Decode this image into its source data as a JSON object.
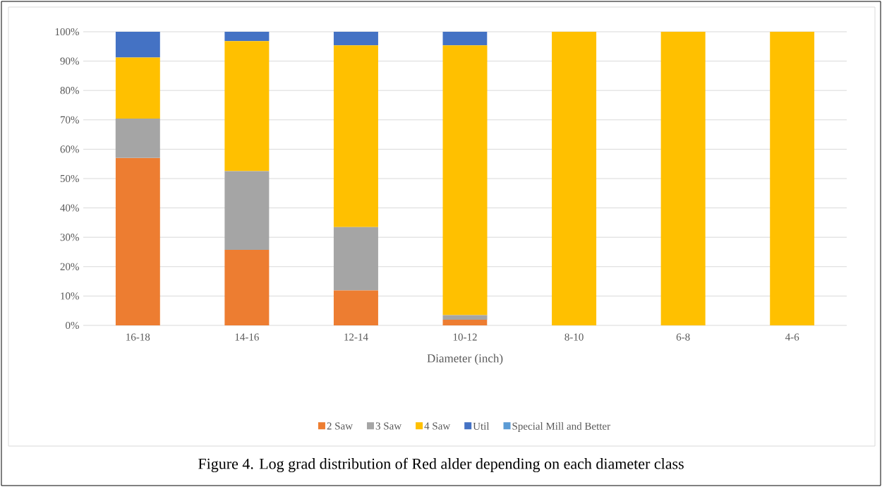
{
  "chart_data": {
    "type": "bar",
    "stacked": true,
    "xlabel": "Diameter (inch)",
    "categories": [
      "16-18",
      "14-16",
      "12-14",
      "10-12",
      "8-10",
      "6-8",
      "4-6"
    ],
    "series": [
      {
        "name": "2 Saw",
        "color": "#ed7d31",
        "values": [
          57.0,
          25.7,
          11.9,
          1.9,
          0,
          0,
          0
        ]
      },
      {
        "name": "3 Saw",
        "color": "#a5a5a5",
        "values": [
          13.4,
          26.8,
          21.6,
          1.6,
          0,
          0,
          0
        ]
      },
      {
        "name": "4 Saw",
        "color": "#ffc000",
        "values": [
          20.8,
          44.3,
          61.9,
          91.9,
          100,
          100,
          100
        ]
      },
      {
        "name": "Util",
        "color": "#4472c4",
        "values": [
          8.8,
          3.2,
          4.6,
          4.6,
          0,
          0,
          0
        ]
      },
      {
        "name": "Special Mill and Better",
        "color": "#5b9bd5",
        "values": [
          0,
          0,
          0,
          0,
          0,
          0,
          0
        ]
      }
    ],
    "ylim": [
      0,
      100
    ],
    "yticks": [
      {
        "value": 0,
        "label": "0%"
      },
      {
        "value": 10,
        "label": "10%"
      },
      {
        "value": 20,
        "label": "20%"
      },
      {
        "value": 30,
        "label": "30%"
      },
      {
        "value": 40,
        "label": "40%"
      },
      {
        "value": 50,
        "label": "50%"
      },
      {
        "value": 60,
        "label": "60%"
      },
      {
        "value": 70,
        "label": "70%"
      },
      {
        "value": 80,
        "label": "80%"
      },
      {
        "value": 90,
        "label": "90%"
      },
      {
        "value": 100,
        "label": "100%"
      }
    ],
    "grid": "y",
    "legend": "bottom",
    "annotations": [
      "Figure 4. Log grad distribution of Red alder depending on each diameter class"
    ]
  }
}
